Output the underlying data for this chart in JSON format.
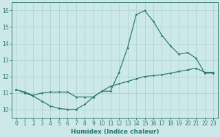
{
  "xlabel": "Humidex (Indice chaleur)",
  "xlim": [
    -0.5,
    23.5
  ],
  "ylim": [
    9.5,
    16.5
  ],
  "yticks": [
    10,
    11,
    12,
    13,
    14,
    15,
    16
  ],
  "xticks": [
    0,
    1,
    2,
    3,
    4,
    5,
    6,
    7,
    8,
    9,
    10,
    11,
    12,
    13,
    14,
    15,
    16,
    17,
    18,
    19,
    20,
    21,
    22,
    23
  ],
  "bg_color": "#cce8e8",
  "line_color": "#2d7a6e",
  "grid_color": "#aacfcf",
  "curve1_x": [
    0,
    1,
    2,
    3,
    4,
    5,
    6,
    7,
    8,
    9,
    10,
    11,
    12,
    13,
    14,
    15,
    16,
    17,
    18,
    19,
    20,
    21,
    22,
    23
  ],
  "curve1_y": [
    11.2,
    11.0,
    10.8,
    10.5,
    10.2,
    10.05,
    10.0,
    10.0,
    10.3,
    10.75,
    11.1,
    11.1,
    12.25,
    13.75,
    15.75,
    16.0,
    15.35,
    14.5,
    13.85,
    13.35,
    13.45,
    13.1,
    12.2,
    12.2
  ],
  "curve2_x": [
    0,
    1,
    2,
    3,
    4,
    5,
    6,
    7,
    8,
    9,
    10,
    11,
    12,
    13,
    14,
    15,
    16,
    17,
    18,
    19,
    20,
    21,
    22,
    23
  ],
  "curve2_y": [
    11.2,
    11.05,
    10.85,
    11.0,
    11.05,
    11.05,
    11.05,
    10.75,
    10.75,
    10.75,
    11.1,
    11.4,
    11.55,
    11.7,
    11.85,
    12.0,
    12.05,
    12.1,
    12.2,
    12.3,
    12.4,
    12.5,
    12.25,
    12.25
  ]
}
